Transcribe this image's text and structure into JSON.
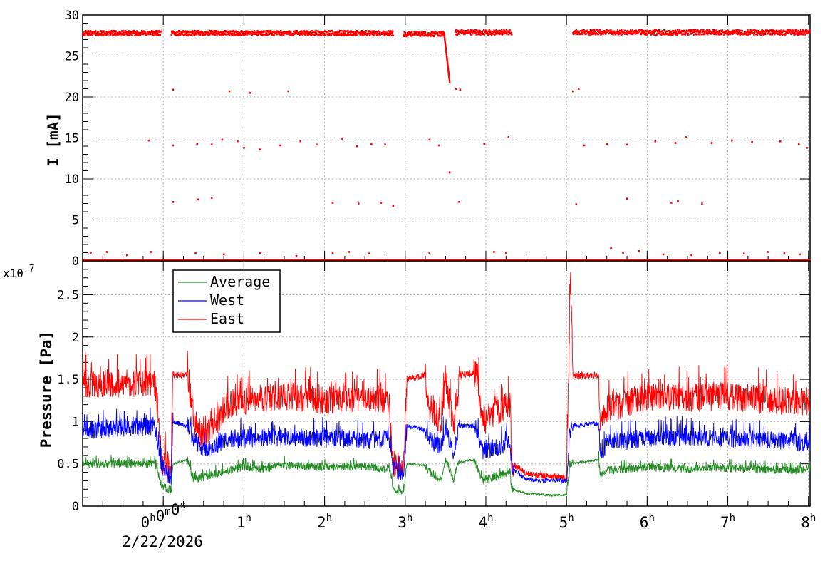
{
  "chart_data": [
    {
      "type": "scatter",
      "ylabel": "I [mA]",
      "ylim": [
        0,
        30
      ],
      "yticks": [
        0,
        5,
        10,
        15,
        20,
        25,
        30
      ],
      "grid": true,
      "series": [
        {
          "color": "#ff0000",
          "segments": [
            {
              "t0": -1.0,
              "t1": -0.02,
              "level": 27.8
            },
            {
              "t0": 0.1,
              "t1": 2.85,
              "level": 27.8
            },
            {
              "t0": 2.98,
              "t1": 3.48,
              "level": 27.7
            },
            {
              "t0": 3.62,
              "t1": 4.32,
              "level": 27.9
            },
            {
              "t0": 5.08,
              "t1": 8.02,
              "level": 27.9
            }
          ],
          "decay": {
            "t0": 3.48,
            "t1": 3.55,
            "from": 27.8,
            "to": 21.8
          },
          "points": [
            {
              "x": 0.12,
              "y": 20.9
            },
            {
              "x": 0.82,
              "y": 20.7
            },
            {
              "x": 1.08,
              "y": 20.5
            },
            {
              "x": 1.55,
              "y": 20.7
            },
            {
              "x": 3.63,
              "y": 21.0
            },
            {
              "x": 3.68,
              "y": 20.9
            },
            {
              "x": 5.08,
              "y": 20.7
            },
            {
              "x": 5.15,
              "y": 21.0
            },
            {
              "x": -0.18,
              "y": 14.7
            },
            {
              "x": 0.12,
              "y": 14.1
            },
            {
              "x": 0.42,
              "y": 14.3
            },
            {
              "x": 0.6,
              "y": 14.2
            },
            {
              "x": 0.73,
              "y": 14.8
            },
            {
              "x": 0.92,
              "y": 14.6
            },
            {
              "x": 1.0,
              "y": 13.8
            },
            {
              "x": 1.2,
              "y": 13.6
            },
            {
              "x": 1.45,
              "y": 14.1
            },
            {
              "x": 1.7,
              "y": 14.6
            },
            {
              "x": 1.9,
              "y": 14.2
            },
            {
              "x": 2.22,
              "y": 14.9
            },
            {
              "x": 2.4,
              "y": 14.0
            },
            {
              "x": 2.58,
              "y": 14.3
            },
            {
              "x": 2.75,
              "y": 14.2
            },
            {
              "x": 3.3,
              "y": 14.8
            },
            {
              "x": 3.42,
              "y": 14.1
            },
            {
              "x": 3.98,
              "y": 14.3
            },
            {
              "x": 4.28,
              "y": 15.1
            },
            {
              "x": 5.22,
              "y": 14.1
            },
            {
              "x": 5.5,
              "y": 14.3
            },
            {
              "x": 5.75,
              "y": 14.2
            },
            {
              "x": 6.1,
              "y": 14.6
            },
            {
              "x": 6.35,
              "y": 14.4
            },
            {
              "x": 6.48,
              "y": 15.1
            },
            {
              "x": 6.8,
              "y": 14.4
            },
            {
              "x": 7.05,
              "y": 14.7
            },
            {
              "x": 7.3,
              "y": 14.5
            },
            {
              "x": 7.65,
              "y": 14.6
            },
            {
              "x": 7.88,
              "y": 14.3
            },
            {
              "x": 7.98,
              "y": 13.8
            },
            {
              "x": 3.55,
              "y": 10.8
            },
            {
              "x": 0.12,
              "y": 7.2
            },
            {
              "x": 0.43,
              "y": 7.5
            },
            {
              "x": 0.6,
              "y": 7.7
            },
            {
              "x": 2.1,
              "y": 7.1
            },
            {
              "x": 2.42,
              "y": 7.0
            },
            {
              "x": 2.7,
              "y": 7.1
            },
            {
              "x": 2.85,
              "y": 6.7
            },
            {
              "x": 3.67,
              "y": 7.2
            },
            {
              "x": 5.12,
              "y": 6.9
            },
            {
              "x": 5.75,
              "y": 7.6
            },
            {
              "x": 6.3,
              "y": 7.1
            },
            {
              "x": 6.38,
              "y": 7.3
            },
            {
              "x": 6.68,
              "y": 7.0
            },
            {
              "x": -0.9,
              "y": 1.0
            },
            {
              "x": -0.7,
              "y": 1.1
            },
            {
              "x": -0.45,
              "y": 0.7
            },
            {
              "x": -0.15,
              "y": 1.1
            },
            {
              "x": 0.4,
              "y": 1.0
            },
            {
              "x": 0.75,
              "y": 0.8
            },
            {
              "x": 1.2,
              "y": 1.0
            },
            {
              "x": 1.65,
              "y": 0.6
            },
            {
              "x": 2.1,
              "y": 1.0
            },
            {
              "x": 2.3,
              "y": 1.1
            },
            {
              "x": 2.55,
              "y": 0.9
            },
            {
              "x": 3.3,
              "y": 1.0
            },
            {
              "x": 4.1,
              "y": 1.1
            },
            {
              "x": 4.25,
              "y": 1.0
            },
            {
              "x": 5.55,
              "y": 1.6
            },
            {
              "x": 5.7,
              "y": 1.0
            },
            {
              "x": 5.9,
              "y": 1.2
            },
            {
              "x": 6.2,
              "y": 0.8
            },
            {
              "x": 6.55,
              "y": 0.7
            },
            {
              "x": 6.9,
              "y": 1.0
            },
            {
              "x": 7.2,
              "y": 0.9
            },
            {
              "x": 7.5,
              "y": 1.1
            },
            {
              "x": 7.7,
              "y": 1.0
            },
            {
              "x": 7.9,
              "y": 0.8
            }
          ]
        }
      ]
    },
    {
      "type": "line",
      "ylabel": "Pressure [Pa]",
      "exponent_label": "x10",
      "exponent": "-7",
      "ylim": [
        0,
        2.9
      ],
      "yticks": [
        "0",
        "0.5",
        "1",
        "1.5",
        "2",
        "2.5"
      ],
      "yticks_values": [
        0,
        0.5,
        1,
        1.5,
        2,
        2.5
      ],
      "grid": true,
      "legend": {
        "position": "top-left"
      },
      "series": [
        {
          "name": "Average",
          "color": "#228b22",
          "points": [
            [
              -1.0,
              0.5
            ],
            [
              -0.1,
              0.5
            ],
            [
              -0.02,
              0.25
            ],
            [
              0.1,
              0.17
            ],
            [
              0.12,
              0.5
            ],
            [
              0.3,
              0.55
            ],
            [
              0.38,
              0.3
            ],
            [
              0.5,
              0.35
            ],
            [
              0.8,
              0.42
            ],
            [
              1.0,
              0.46
            ],
            [
              1.2,
              0.44
            ],
            [
              1.5,
              0.48
            ],
            [
              2.0,
              0.46
            ],
            [
              2.5,
              0.47
            ],
            [
              2.8,
              0.44
            ],
            [
              2.85,
              0.2
            ],
            [
              2.98,
              0.15
            ],
            [
              3.02,
              0.5
            ],
            [
              3.25,
              0.48
            ],
            [
              3.28,
              0.42
            ],
            [
              3.45,
              0.3
            ],
            [
              3.5,
              0.55
            ],
            [
              3.6,
              0.3
            ],
            [
              3.62,
              0.42
            ],
            [
              3.68,
              0.52
            ],
            [
              3.85,
              0.55
            ],
            [
              3.9,
              0.45
            ],
            [
              3.95,
              0.3
            ],
            [
              4.15,
              0.35
            ],
            [
              4.3,
              0.4
            ],
            [
              4.32,
              0.2
            ],
            [
              4.5,
              0.15
            ],
            [
              4.8,
              0.13
            ],
            [
              5.0,
              0.13
            ],
            [
              5.05,
              0.5
            ],
            [
              5.4,
              0.55
            ],
            [
              5.42,
              0.35
            ],
            [
              5.5,
              0.42
            ],
            [
              6.0,
              0.46
            ],
            [
              6.5,
              0.44
            ],
            [
              7.0,
              0.45
            ],
            [
              7.5,
              0.43
            ],
            [
              8.02,
              0.42
            ]
          ]
        },
        {
          "name": "West",
          "color": "#0000ff",
          "points": [
            [
              -1.0,
              0.9
            ],
            [
              -0.1,
              0.95
            ],
            [
              -0.02,
              0.45
            ],
            [
              0.1,
              0.35
            ],
            [
              0.12,
              1.0
            ],
            [
              0.3,
              0.95
            ],
            [
              0.38,
              0.8
            ],
            [
              0.5,
              0.65
            ],
            [
              0.8,
              0.8
            ],
            [
              1.0,
              0.8
            ],
            [
              1.5,
              0.82
            ],
            [
              2.0,
              0.8
            ],
            [
              2.5,
              0.78
            ],
            [
              2.8,
              0.8
            ],
            [
              2.85,
              0.45
            ],
            [
              2.98,
              0.4
            ],
            [
              3.02,
              0.95
            ],
            [
              3.25,
              0.9
            ],
            [
              3.28,
              0.8
            ],
            [
              3.45,
              0.7
            ],
            [
              3.5,
              0.95
            ],
            [
              3.6,
              0.6
            ],
            [
              3.62,
              0.75
            ],
            [
              3.68,
              0.95
            ],
            [
              3.85,
              0.95
            ],
            [
              3.9,
              0.9
            ],
            [
              3.95,
              0.65
            ],
            [
              4.15,
              0.7
            ],
            [
              4.3,
              0.75
            ],
            [
              4.32,
              0.45
            ],
            [
              4.5,
              0.32
            ],
            [
              4.8,
              0.3
            ],
            [
              5.0,
              0.3
            ],
            [
              5.05,
              0.95
            ],
            [
              5.4,
              0.98
            ],
            [
              5.42,
              0.6
            ],
            [
              5.5,
              0.75
            ],
            [
              6.0,
              0.8
            ],
            [
              6.5,
              0.82
            ],
            [
              7.0,
              0.8
            ],
            [
              7.5,
              0.78
            ],
            [
              8.02,
              0.75
            ]
          ]
        },
        {
          "name": "East",
          "color": "#ff0000",
          "points": [
            [
              -1.0,
              1.45
            ],
            [
              -0.1,
              1.45
            ],
            [
              -0.02,
              0.55
            ],
            [
              0.1,
              0.45
            ],
            [
              0.12,
              1.55
            ],
            [
              0.3,
              1.55
            ],
            [
              0.38,
              1.0
            ],
            [
              0.5,
              0.8
            ],
            [
              0.8,
              1.2
            ],
            [
              1.0,
              1.25
            ],
            [
              1.5,
              1.3
            ],
            [
              2.0,
              1.25
            ],
            [
              2.5,
              1.28
            ],
            [
              2.8,
              1.25
            ],
            [
              2.85,
              0.5
            ],
            [
              2.98,
              0.45
            ],
            [
              3.02,
              1.5
            ],
            [
              3.25,
              1.55
            ],
            [
              3.28,
              1.2
            ],
            [
              3.45,
              1.0
            ],
            [
              3.5,
              1.52
            ],
            [
              3.6,
              0.9
            ],
            [
              3.62,
              1.1
            ],
            [
              3.68,
              1.55
            ],
            [
              3.85,
              1.58
            ],
            [
              3.9,
              1.5
            ],
            [
              3.95,
              1.0
            ],
            [
              4.15,
              1.1
            ],
            [
              4.3,
              1.2
            ],
            [
              4.32,
              0.5
            ],
            [
              4.5,
              0.38
            ],
            [
              4.8,
              0.35
            ],
            [
              5.0,
              0.33
            ],
            [
              5.05,
              2.75
            ],
            [
              5.08,
              1.55
            ],
            [
              5.4,
              1.55
            ],
            [
              5.42,
              1.0
            ],
            [
              5.5,
              1.15
            ],
            [
              6.0,
              1.3
            ],
            [
              6.5,
              1.28
            ],
            [
              7.0,
              1.3
            ],
            [
              7.5,
              1.25
            ],
            [
              8.02,
              1.22
            ]
          ]
        }
      ]
    }
  ],
  "x_axis": {
    "range": [
      -1.0,
      8.02
    ],
    "ticks": [
      {
        "value": 0,
        "parts": [
          [
            "0",
            "h"
          ],
          [
            "0",
            "m"
          ],
          [
            "0",
            "s"
          ]
        ]
      },
      {
        "value": 1,
        "parts": [
          [
            "1",
            "h"
          ]
        ]
      },
      {
        "value": 2,
        "parts": [
          [
            "2",
            "h"
          ]
        ]
      },
      {
        "value": 3,
        "parts": [
          [
            "3",
            "h"
          ]
        ]
      },
      {
        "value": 4,
        "parts": [
          [
            "4",
            "h"
          ]
        ]
      },
      {
        "value": 5,
        "parts": [
          [
            "5",
            "h"
          ]
        ]
      },
      {
        "value": 6,
        "parts": [
          [
            "6",
            "h"
          ]
        ]
      },
      {
        "value": 7,
        "parts": [
          [
            "7",
            "h"
          ]
        ]
      },
      {
        "value": 8,
        "parts": [
          [
            "8",
            "h"
          ]
        ]
      }
    ],
    "date_label": "2/22/2026"
  }
}
